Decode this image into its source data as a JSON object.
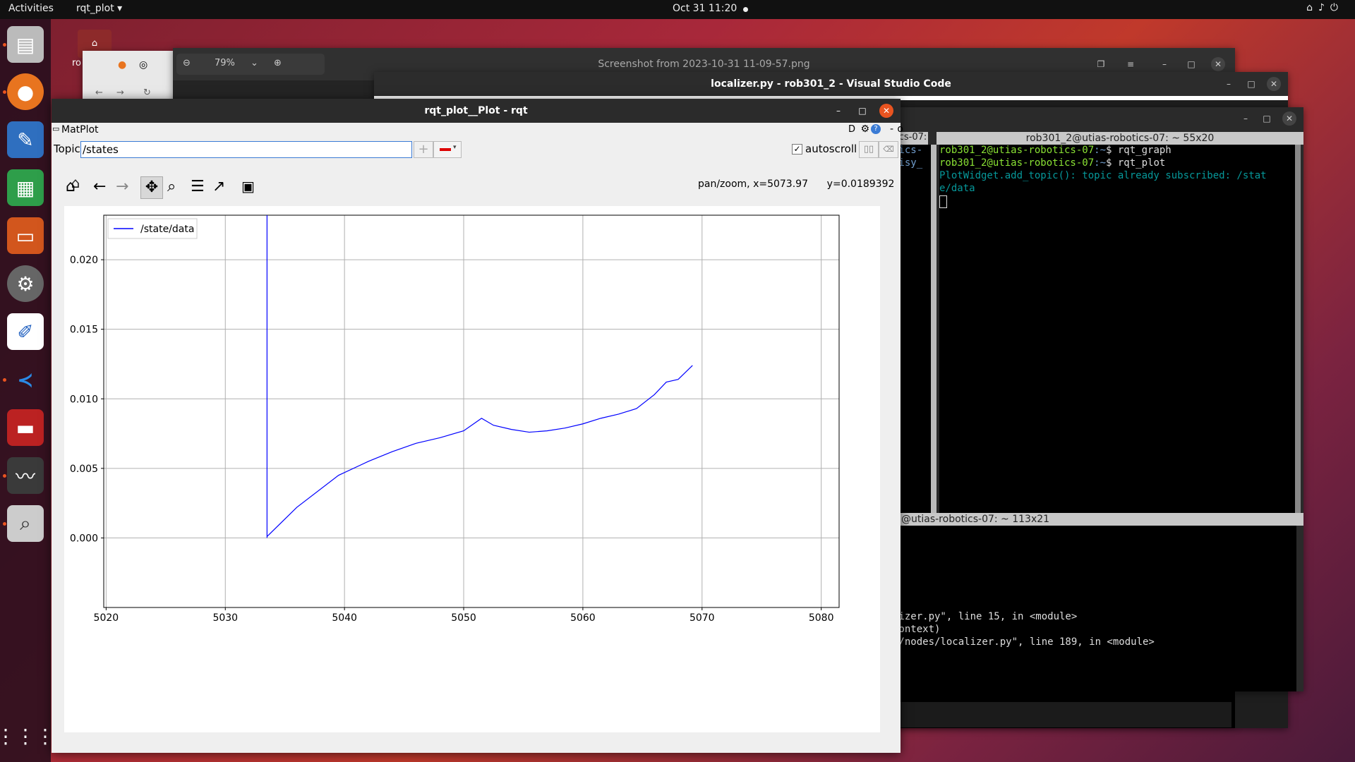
{
  "topbar": {
    "activities": "Activities",
    "app_menu": "rqt_plot ▾",
    "clock": "Oct 31  11:20"
  },
  "image_viewer": {
    "zoom": "79%",
    "title": "Screenshot from 2023-10-31 11-09-57.png"
  },
  "desktop_icon": {
    "label": "ro"
  },
  "vscode": {
    "title": "localizer.py - rob301_2 - Visual Studio Code"
  },
  "terminal_top": {
    "title": "rob301_2@utias-robotics-07: ~ 55x20",
    "left_fragments": [
      "tics-07: ~",
      "tics-",
      "oisy_"
    ],
    "lines": [
      {
        "prompt": "rob301_2@utias-robotics-07",
        "path": ":~",
        "cmd": "$ rqt_graph"
      },
      {
        "prompt": "rob301_2@utias-robotics-07",
        "path": ":~",
        "cmd": "$ rqt_plot"
      }
    ],
    "output": [
      "PlotWidget.add_topic(): topic already subscribed: /stat",
      "e/data"
    ]
  },
  "terminal_bottom": {
    "title": "@utias-robotics-07: ~ 113x21",
    "lines": [
      "lizer.py\", line 15, in <module>",
      "context)",
      "4/nodes/localizer.py\", line 189, in <module>"
    ]
  },
  "rqt": {
    "title": "rqt_plot__Plot - rqt",
    "plugin_label": "MatPlot",
    "plugin_controls": "D",
    "topic_label": "Topic",
    "topic_value": "/states",
    "autoscroll_label": "autoscroll",
    "status": "pan/zoom, x=5073.97      y=0.0189392"
  },
  "chart_data": {
    "type": "line",
    "title": "",
    "xlabel": "",
    "ylabel": "",
    "xlim": [
      5019.8,
      5081.5
    ],
    "ylim": [
      -0.005,
      0.0232
    ],
    "xticks": [
      5020,
      5030,
      5040,
      5050,
      5060,
      5070,
      5080
    ],
    "xtick_labels": [
      "5020",
      "5030",
      "5040",
      "5050",
      "5060",
      "5070",
      "5080"
    ],
    "yticks": [
      0.0,
      0.005,
      0.01,
      0.015,
      0.02
    ],
    "ytick_labels": [
      "0.000",
      "0.005",
      "0.010",
      "0.015",
      "0.020"
    ],
    "grid": true,
    "legend": "top-left",
    "series": [
      {
        "name": "/state/data",
        "color": "#0000ff",
        "x": [
          5033.5,
          5033.5,
          5033.5,
          5036.0,
          5039.5,
          5042.0,
          5044.0,
          5046.0,
          5048.0,
          5050.0,
          5051.5,
          5052.5,
          5054.0,
          5055.5,
          5057.0,
          5058.5,
          5060.0,
          5061.5,
          5063.0,
          5064.5,
          5066.0,
          5067.0,
          5068.0,
          5069.2
        ],
        "y": [
          0.0232,
          0.0,
          0.0001,
          0.0022,
          0.0045,
          0.0055,
          0.0062,
          0.0068,
          0.0072,
          0.0077,
          0.0086,
          0.0081,
          0.0078,
          0.0076,
          0.0077,
          0.0079,
          0.0082,
          0.0086,
          0.0089,
          0.0093,
          0.0103,
          0.0112,
          0.0114,
          0.0124
        ]
      }
    ]
  }
}
